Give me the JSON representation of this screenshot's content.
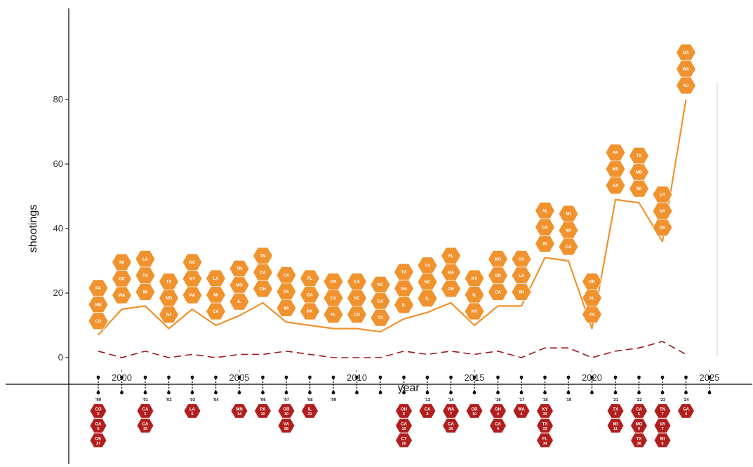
{
  "colors": {
    "total_line": "#f0922e",
    "mass_line": "#a01818",
    "hex_orange": "#f0922e",
    "hex_red": "#b21e1e",
    "axis": "#000000"
  },
  "chart_data": {
    "type": "line",
    "xlabel": "year",
    "ylabel": "shootings",
    "xlim": [
      1997.5,
      2025.5
    ],
    "ylim": [
      -21,
      119
    ],
    "x_ticks": [
      2000,
      2005,
      2010,
      2015,
      2020,
      2025
    ],
    "y_ticks": [
      0,
      20,
      40,
      60,
      80
    ],
    "grid": false,
    "x": [
      1999,
      2000,
      2001,
      2002,
      2003,
      2004,
      2005,
      2006,
      2007,
      2008,
      2009,
      2010,
      2011,
      2012,
      2013,
      2014,
      2015,
      2016,
      2017,
      2018,
      2019,
      2020,
      2021,
      2022,
      2023,
      2024
    ],
    "series": [
      {
        "values": [
          7,
          15,
          16,
          9,
          15,
          10,
          13,
          17,
          11,
          10,
          9,
          9,
          8,
          12,
          14,
          17,
          10,
          16,
          16,
          31,
          30,
          9,
          49,
          48,
          36,
          80
        ]
      },
      {
        "values": [
          2,
          0,
          2,
          0,
          1,
          0,
          1,
          1,
          2,
          1,
          0,
          0,
          0,
          2,
          1,
          2,
          1,
          2,
          0,
          3,
          3,
          0,
          2,
          3,
          5,
          1
        ]
      }
    ],
    "upper_groups": [
      {
        "x": 1999,
        "states": [
          "PA",
          "NM",
          "CO"
        ]
      },
      {
        "x": 2000,
        "states": [
          "MI",
          "OK",
          "WA"
        ]
      },
      {
        "x": 2001,
        "states": [
          "LA",
          "TX",
          "MI"
        ]
      },
      {
        "x": 2002,
        "states": [
          "TX",
          "MD",
          "NJ"
        ]
      },
      {
        "x": 2003,
        "states": [
          "NC",
          "KY",
          "PA"
        ]
      },
      {
        "x": 2004,
        "states": [
          "LA",
          "MI",
          "CA"
        ]
      },
      {
        "x": 2005,
        "states": [
          "TN",
          "MO",
          "IL"
        ]
      },
      {
        "x": 2006,
        "states": [
          "TN",
          "CA",
          "OH"
        ]
      },
      {
        "x": 2007,
        "states": [
          "CA",
          "PA",
          "WI"
        ]
      },
      {
        "x": 2008,
        "states": [
          "FL",
          "GA",
          "PA"
        ]
      },
      {
        "x": 2009,
        "states": [
          "OH",
          "CA",
          "FL"
        ]
      },
      {
        "x": 2010,
        "states": [
          "CA",
          "SC",
          "CO"
        ]
      },
      {
        "x": 2011,
        "states": [
          "NC",
          "GA",
          "TX"
        ]
      },
      {
        "x": 2012,
        "states": [
          "TX",
          "GA",
          "IL"
        ]
      },
      {
        "x": 2013,
        "states": [
          "TX",
          "NC",
          "IL"
        ]
      },
      {
        "x": 2014,
        "states": [
          "FL",
          "MA",
          "OH"
        ]
      },
      {
        "x": 2015,
        "states": [
          "KY",
          "IL",
          "NY"
        ]
      },
      {
        "x": 2016,
        "states": [
          "MO",
          "OR",
          "CA"
        ]
      },
      {
        "x": 2017,
        "states": [
          "CA",
          "LA",
          "MI"
        ]
      },
      {
        "x": 2018,
        "states": [
          "AL",
          "CA",
          "IN"
        ]
      },
      {
        "x": 2019,
        "states": [
          "MI",
          "WI",
          "CA"
        ]
      },
      {
        "x": 2020,
        "states": [
          "OK",
          "AL",
          "TN"
        ]
      },
      {
        "x": 2021,
        "states": [
          "PA",
          "MD",
          "GA"
        ]
      },
      {
        "x": 2022,
        "states": [
          "TX",
          "MD",
          "MI"
        ]
      },
      {
        "x": 2023,
        "states": [
          "UT",
          "NY",
          "OH"
        ]
      },
      {
        "x": 2024,
        "states": [
          "GA",
          "WA",
          "NJ"
        ]
      }
    ],
    "lower_groups": [
      {
        "x": 1999,
        "label": "'99",
        "items": [
          {
            "state": "CO",
            "n": "5"
          },
          {
            "state": "GA",
            "n": "6"
          },
          {
            "state": "OK",
            "n": "37"
          }
        ]
      },
      {
        "x": 2000,
        "label": "",
        "items": []
      },
      {
        "x": 2001,
        "label": "'01",
        "items": [
          {
            "state": "CA",
            "n": "5"
          },
          {
            "state": "CA",
            "n": "15"
          }
        ]
      },
      {
        "x": 2002,
        "label": "'02",
        "items": []
      },
      {
        "x": 2003,
        "label": "'03",
        "items": [
          {
            "state": "LA",
            "n": "5"
          }
        ]
      },
      {
        "x": 2004,
        "label": "'04",
        "items": []
      },
      {
        "x": 2005,
        "label": "",
        "items": [
          {
            "state": "MN",
            "n": "14"
          }
        ]
      },
      {
        "x": 2006,
        "label": "'06",
        "items": [
          {
            "state": "PA",
            "n": "10"
          }
        ]
      },
      {
        "x": 2007,
        "label": "'07",
        "items": [
          {
            "state": "OR",
            "n": "10"
          },
          {
            "state": "VA",
            "n": "58"
          }
        ]
      },
      {
        "x": 2008,
        "label": "'08",
        "items": [
          {
            "state": "IL",
            "n": "21"
          }
        ]
      },
      {
        "x": 2009,
        "label": "'09",
        "items": []
      },
      {
        "x": 2010,
        "label": "",
        "items": []
      },
      {
        "x": 2011,
        "label": "",
        "items": []
      },
      {
        "x": 2012,
        "label": "",
        "items": [
          {
            "state": "OH",
            "n": "6"
          },
          {
            "state": "CA",
            "n": "10"
          },
          {
            "state": "CT",
            "n": "26"
          }
        ]
      },
      {
        "x": 2013,
        "label": "'13",
        "items": [
          {
            "state": "CA",
            "n": "8"
          }
        ]
      },
      {
        "x": 2014,
        "label": "'14",
        "items": [
          {
            "state": "WA",
            "n": "7"
          },
          {
            "state": "CA",
            "n": "20"
          }
        ]
      },
      {
        "x": 2015,
        "label": "",
        "items": [
          {
            "state": "OR",
            "n": "10"
          }
        ]
      },
      {
        "x": 2016,
        "label": "'16",
        "items": [
          {
            "state": "OH",
            "n": "4"
          },
          {
            "state": "CA",
            "n": "4"
          }
        ]
      },
      {
        "x": 2017,
        "label": "'17",
        "items": [
          {
            "state": "WA",
            "n": "4"
          }
        ]
      },
      {
        "x": 2018,
        "label": "'18",
        "items": [
          {
            "state": "KY",
            "n": "20"
          },
          {
            "state": "TX",
            "n": "23"
          },
          {
            "state": "FL",
            "n": "34"
          }
        ]
      },
      {
        "x": 2019,
        "label": "'19",
        "items": []
      },
      {
        "x": 2020,
        "label": "",
        "items": []
      },
      {
        "x": 2021,
        "label": "'21",
        "items": [
          {
            "state": "TX",
            "n": "4"
          },
          {
            "state": "MI",
            "n": "11"
          }
        ]
      },
      {
        "x": 2022,
        "label": "'22",
        "items": [
          {
            "state": "CA",
            "n": "6"
          },
          {
            "state": "MO",
            "n": "9"
          },
          {
            "state": "TX",
            "n": "38"
          }
        ]
      },
      {
        "x": 2023,
        "label": "'23",
        "items": [
          {
            "state": "TN",
            "n": "7"
          },
          {
            "state": "VA",
            "n": "7"
          },
          {
            "state": "MI",
            "n": "6"
          }
        ]
      },
      {
        "x": 2024,
        "label": "'24",
        "items": [
          {
            "state": "GA",
            "n": "4"
          }
        ]
      },
      {
        "x": 2025,
        "label": "",
        "items": []
      }
    ]
  }
}
